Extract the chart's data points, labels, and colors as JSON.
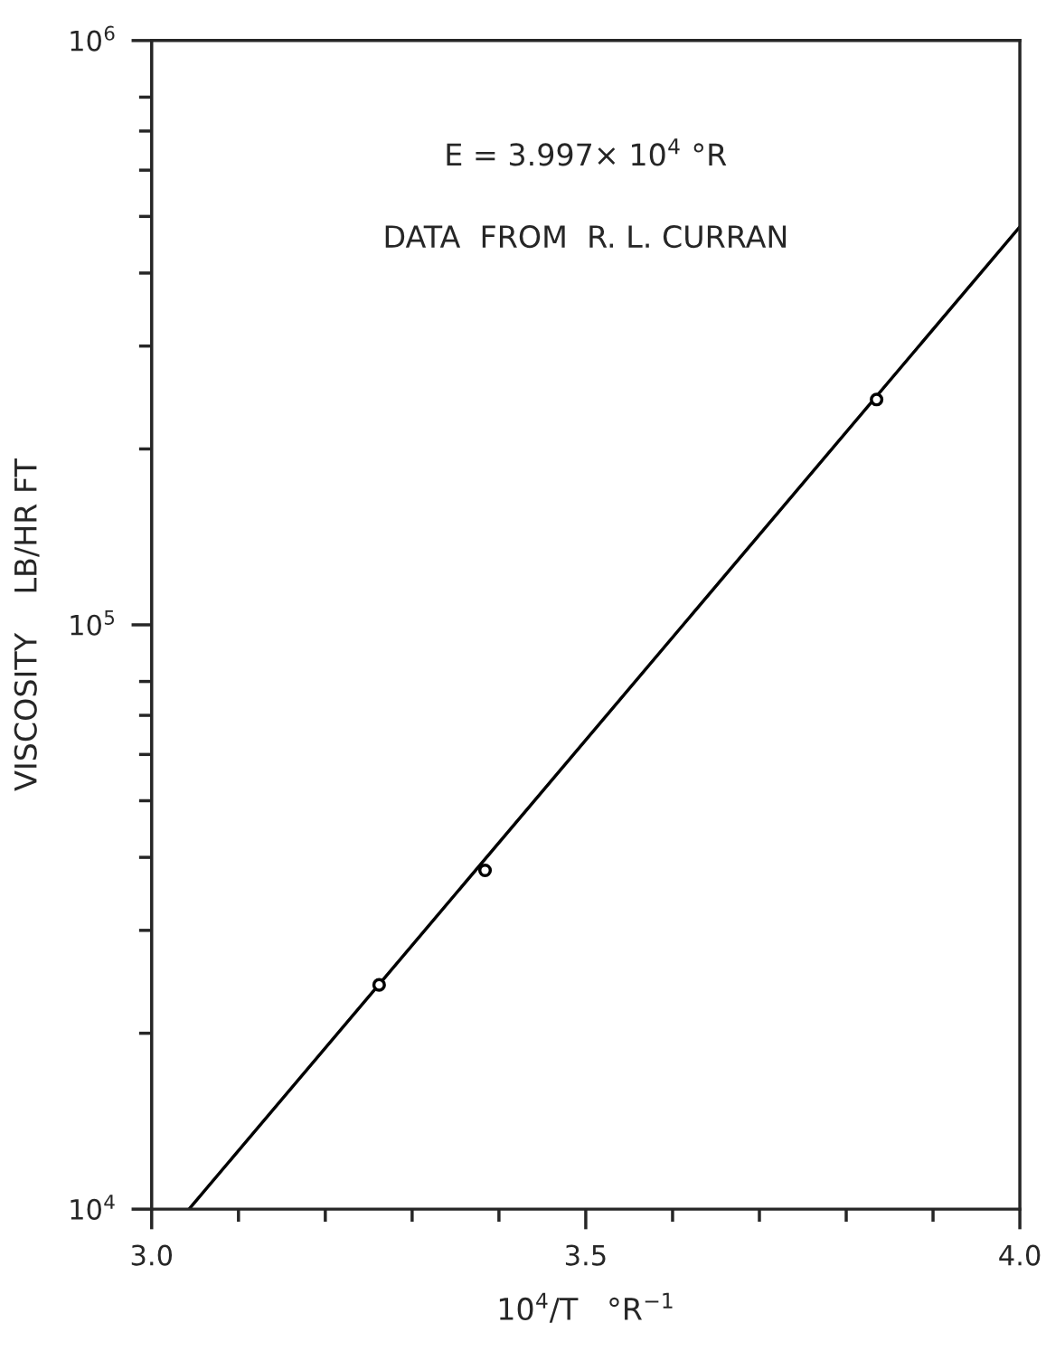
{
  "chart_data": {
    "type": "scatter",
    "xlabel": "10$^{4}$/T   °R$^{−1}$",
    "ylabel": "VISCOSITY    LB/HR FT",
    "annotations": [
      "E = 3.997× 10$^{4}$ °R",
      "DATA  FROM  R. L. CURRAN"
    ],
    "series": [
      {
        "type": "scatter",
        "x": [
          3.262,
          3.384,
          3.835
        ],
        "values": [
          24200,
          38000,
          243000
        ],
        "color": "#000000",
        "marker": "circle"
      },
      {
        "type": "line",
        "x": [
          3.043,
          4.0
        ],
        "values": [
          10000,
          480000
        ],
        "color": "#000000",
        "marker": "none",
        "line_style": "solid"
      }
    ],
    "log": "y",
    "xlim": [
      3.0,
      4.0
    ],
    "ylim": [
      10000,
      1000000
    ],
    "xticks": [
      {
        "value": 3.0,
        "label": "3.0"
      },
      {
        "value": 3.5,
        "label": "3.5"
      },
      {
        "value": 4.0,
        "label": "4.0"
      }
    ],
    "yticks": [
      {
        "value": 10000,
        "label": "10$^{4}$"
      },
      {
        "value": 100000,
        "label": "10$^{5}$"
      },
      {
        "value": 1000000,
        "label": "10$^{6}$"
      }
    ],
    "grid": false
  }
}
